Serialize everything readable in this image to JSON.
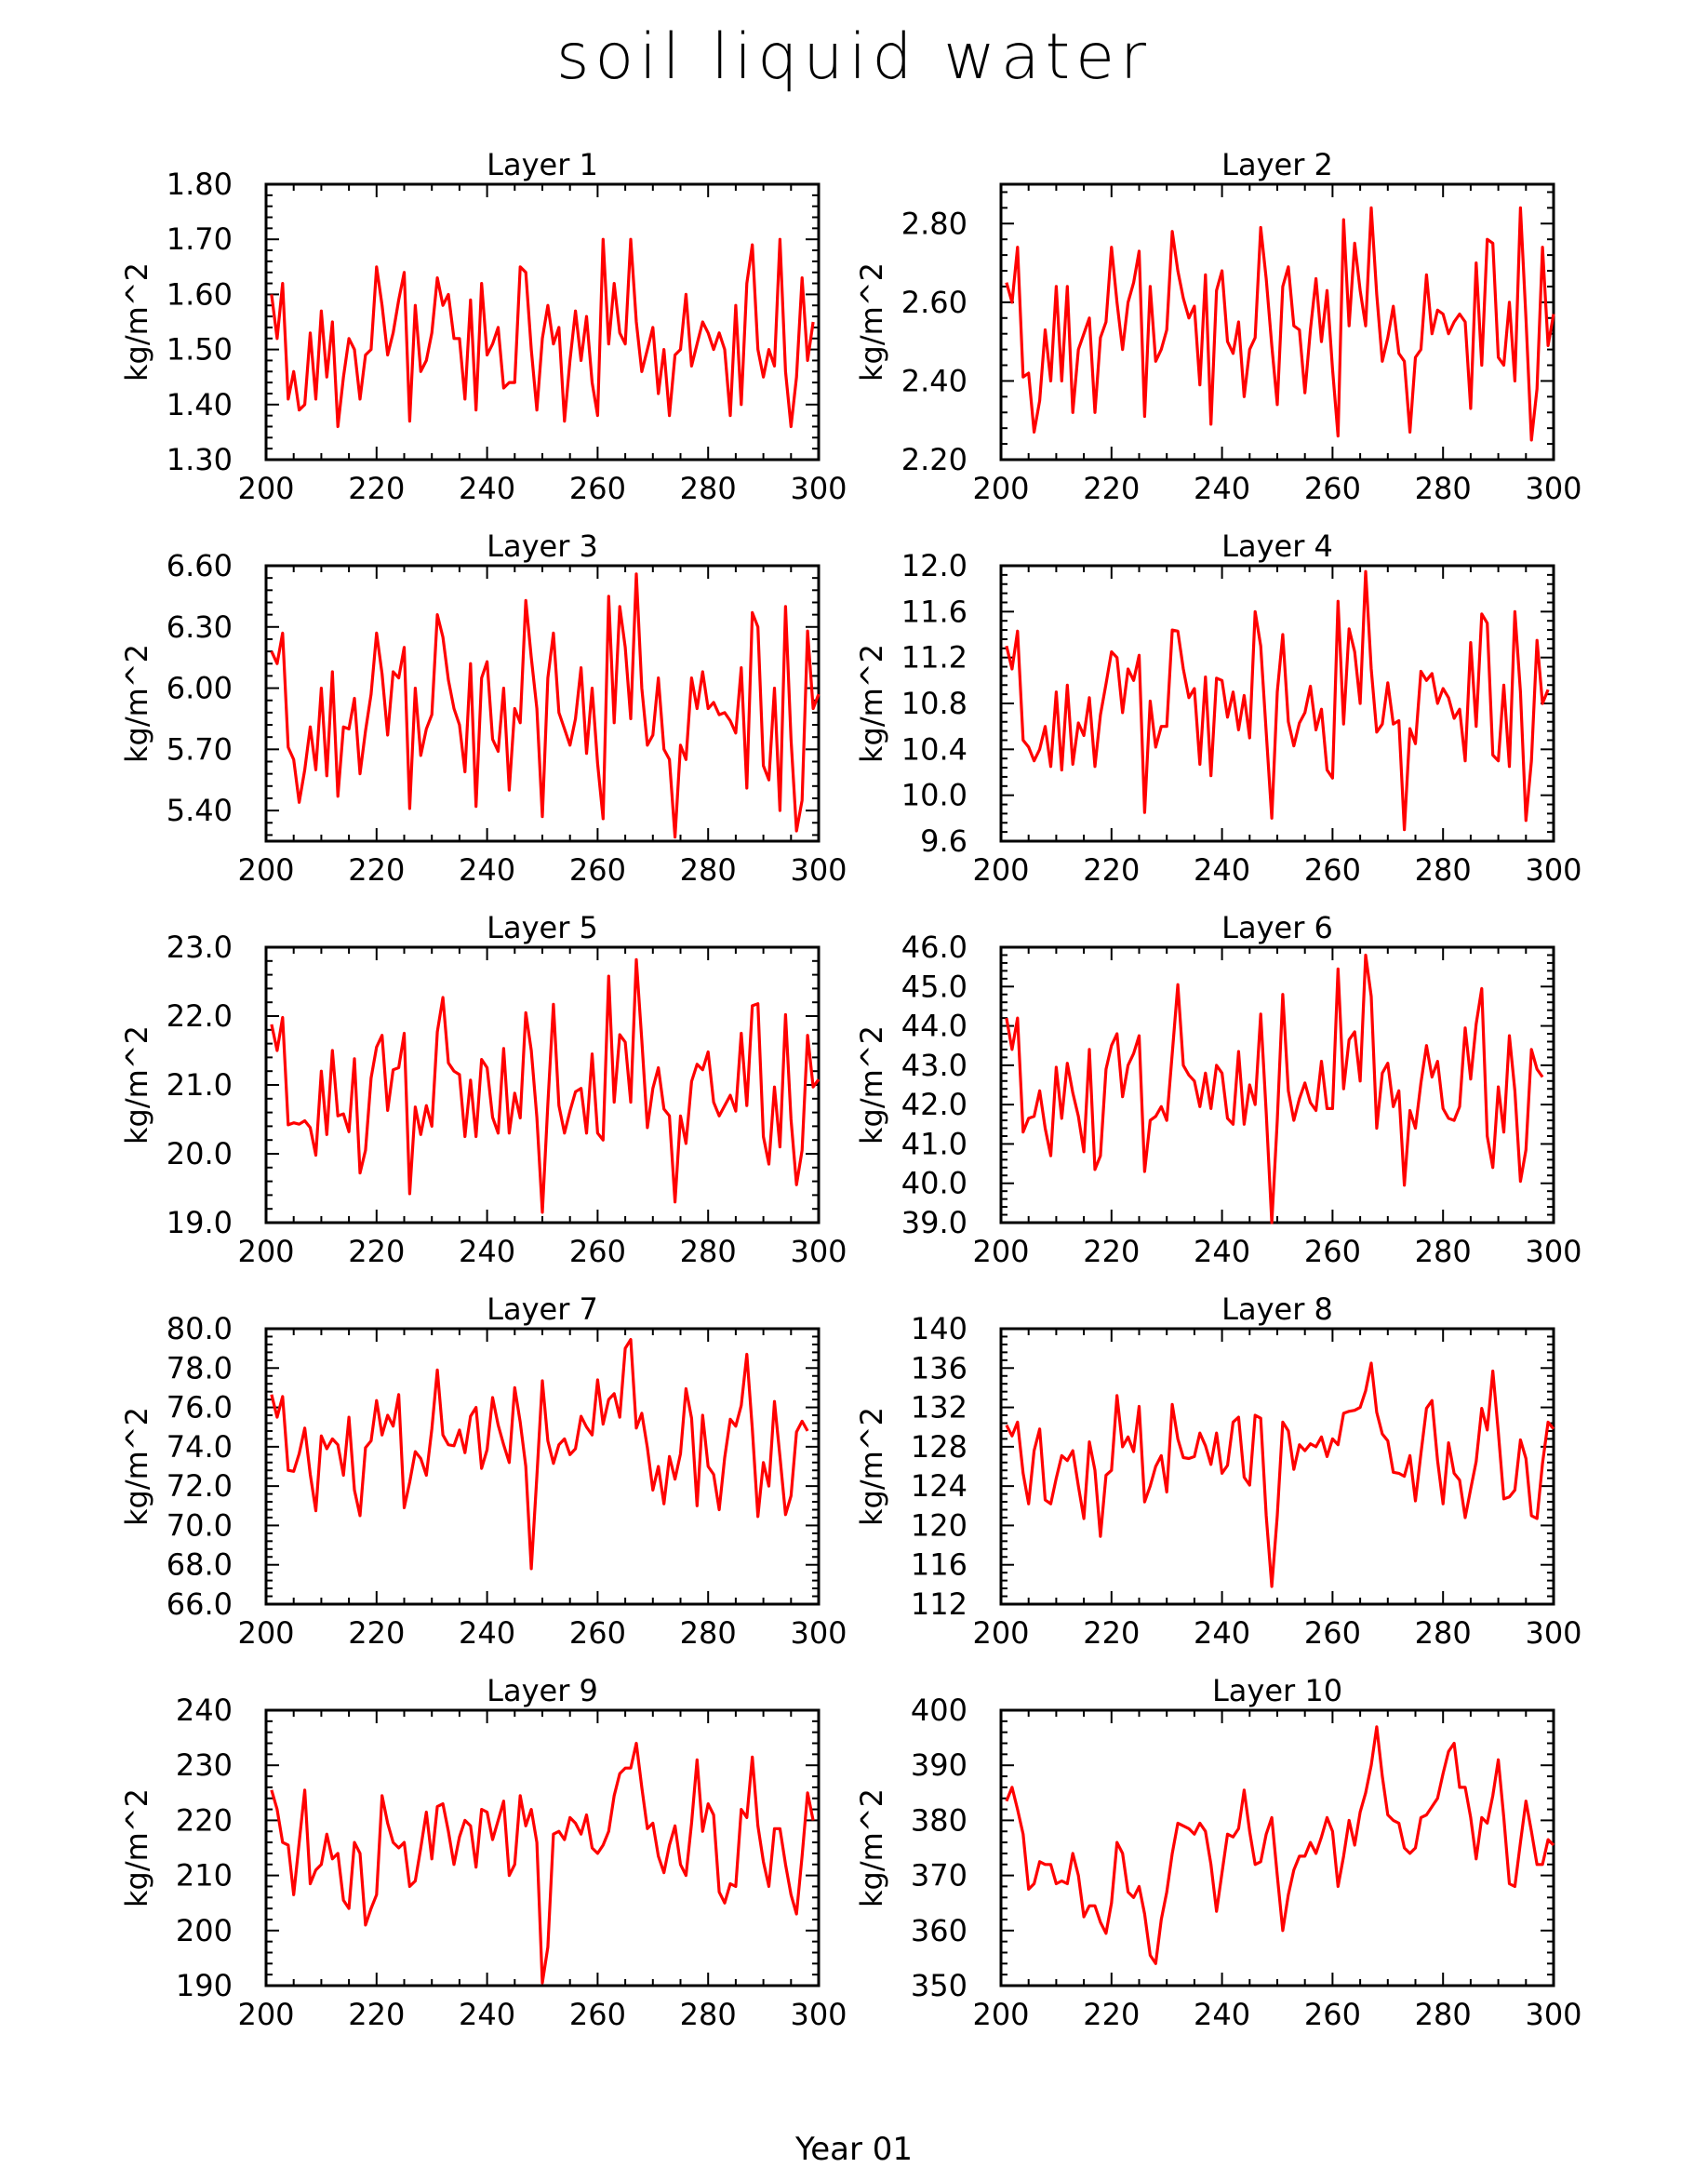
{
  "title": "soil liquid water",
  "footer": "Year 01",
  "line_color": "#ff0000",
  "chart_data": [
    {
      "type": "line",
      "title": "Layer 1",
      "xlabel": "",
      "ylabel": "kg/m^2",
      "xlim": [
        200,
        300
      ],
      "xticks": [
        200,
        220,
        240,
        260,
        280,
        300
      ],
      "ylim": [
        1.3,
        1.8
      ],
      "yticks": [
        "1.30",
        "1.40",
        "1.50",
        "1.60",
        "1.70",
        "1.80"
      ],
      "x_start": 201,
      "x_step": 1,
      "values": [
        1.6,
        1.52,
        1.62,
        1.41,
        1.46,
        1.39,
        1.4,
        1.53,
        1.41,
        1.57,
        1.45,
        1.55,
        1.36,
        1.45,
        1.52,
        1.5,
        1.41,
        1.49,
        1.5,
        1.65,
        1.58,
        1.49,
        1.53,
        1.59,
        1.64,
        1.37,
        1.58,
        1.46,
        1.48,
        1.53,
        1.63,
        1.58,
        1.6,
        1.52,
        1.52,
        1.41,
        1.59,
        1.39,
        1.62,
        1.49,
        1.51,
        1.54,
        1.43,
        1.44,
        1.44,
        1.65,
        1.64,
        1.5,
        1.39,
        1.52,
        1.58,
        1.51,
        1.54,
        1.37,
        1.48,
        1.57,
        1.48,
        1.56,
        1.44,
        1.38,
        1.7,
        1.51,
        1.62,
        1.53,
        1.51,
        1.7,
        1.55,
        1.46,
        1.5,
        1.54,
        1.42,
        1.5,
        1.38,
        1.49,
        1.5,
        1.6,
        1.47,
        1.51,
        1.55,
        1.53,
        1.5,
        1.53,
        1.5,
        1.38,
        1.58,
        1.4,
        1.62,
        1.69,
        1.5,
        1.45,
        1.5,
        1.47,
        1.7,
        1.46,
        1.36,
        1.45,
        1.63,
        1.48,
        1.55
      ]
    },
    {
      "type": "line",
      "title": "Layer 2",
      "xlabel": "",
      "ylabel": "kg/m^2",
      "xlim": [
        200,
        300
      ],
      "xticks": [
        200,
        220,
        240,
        260,
        280,
        300
      ],
      "ylim": [
        2.2,
        2.9
      ],
      "yticks": [
        "2.20",
        "2.40",
        "2.60",
        "2.80"
      ],
      "x_start": 201,
      "x_step": 1,
      "values": [
        2.65,
        2.6,
        2.74,
        2.41,
        2.42,
        2.27,
        2.35,
        2.53,
        2.4,
        2.64,
        2.4,
        2.64,
        2.32,
        2.48,
        2.52,
        2.56,
        2.32,
        2.51,
        2.55,
        2.74,
        2.6,
        2.48,
        2.6,
        2.65,
        2.73,
        2.31,
        2.64,
        2.45,
        2.48,
        2.53,
        2.78,
        2.68,
        2.61,
        2.56,
        2.59,
        2.39,
        2.67,
        2.29,
        2.63,
        2.68,
        2.5,
        2.47,
        2.55,
        2.36,
        2.48,
        2.51,
        2.79,
        2.66,
        2.49,
        2.34,
        2.64,
        2.69,
        2.54,
        2.53,
        2.37,
        2.53,
        2.66,
        2.5,
        2.63,
        2.43,
        2.26,
        2.81,
        2.54,
        2.75,
        2.63,
        2.54,
        2.84,
        2.62,
        2.45,
        2.51,
        2.59,
        2.47,
        2.45,
        2.27,
        2.46,
        2.48,
        2.67,
        2.52,
        2.58,
        2.57,
        2.52,
        2.55,
        2.57,
        2.55,
        2.33,
        2.7,
        2.44,
        2.76,
        2.75,
        2.46,
        2.44,
        2.6,
        2.4,
        2.84,
        2.56,
        2.25,
        2.38,
        2.74,
        2.49,
        2.57
      ]
    },
    {
      "type": "line",
      "title": "Layer 3",
      "xlabel": "",
      "ylabel": "kg/m^2",
      "xlim": [
        200,
        300
      ],
      "xticks": [
        200,
        220,
        240,
        260,
        280,
        300
      ],
      "ylim": [
        5.25,
        6.6
      ],
      "yticks": [
        "5.40",
        "5.70",
        "6.00",
        "6.30",
        "6.60"
      ],
      "x_start": 201,
      "x_step": 1,
      "values": [
        6.18,
        6.12,
        6.27,
        5.71,
        5.65,
        5.44,
        5.6,
        5.81,
        5.6,
        6.0,
        5.57,
        6.08,
        5.47,
        5.81,
        5.8,
        5.95,
        5.58,
        5.79,
        5.97,
        6.27,
        6.07,
        5.77,
        6.08,
        6.05,
        6.2,
        5.41,
        6.0,
        5.67,
        5.8,
        5.87,
        6.36,
        6.25,
        6.04,
        5.9,
        5.82,
        5.59,
        6.12,
        5.42,
        6.05,
        6.13,
        5.75,
        5.69,
        6.0,
        5.5,
        5.9,
        5.83,
        6.43,
        6.15,
        5.9,
        5.37,
        6.05,
        6.27,
        5.88,
        5.8,
        5.72,
        5.85,
        6.1,
        5.68,
        6.0,
        5.63,
        5.36,
        6.45,
        5.83,
        6.4,
        6.2,
        5.85,
        6.56,
        6.0,
        5.72,
        5.77,
        6.05,
        5.7,
        5.65,
        5.27,
        5.72,
        5.65,
        6.05,
        5.9,
        6.08,
        5.9,
        5.93,
        5.87,
        5.88,
        5.84,
        5.78,
        6.1,
        5.51,
        6.37,
        6.3,
        5.62,
        5.55,
        6.0,
        5.4,
        6.4,
        5.75,
        5.3,
        5.45,
        6.28,
        5.9,
        5.97
      ]
    },
    {
      "type": "line",
      "title": "Layer 4",
      "xlabel": "",
      "ylabel": "kg/m^2",
      "xlim": [
        200,
        300
      ],
      "xticks": [
        200,
        220,
        240,
        260,
        280,
        300
      ],
      "ylim": [
        9.6,
        12.0
      ],
      "yticks": [
        "9.6",
        "10.0",
        "10.4",
        "10.8",
        "11.2",
        "11.6",
        "12.0"
      ],
      "x_start": 201,
      "x_step": 1,
      "values": [
        11.3,
        11.1,
        11.43,
        10.48,
        10.42,
        10.3,
        10.4,
        10.6,
        10.25,
        10.9,
        10.22,
        10.96,
        10.27,
        10.63,
        10.52,
        10.85,
        10.25,
        10.7,
        10.97,
        11.25,
        11.2,
        10.72,
        11.1,
        11.0,
        11.22,
        9.85,
        10.82,
        10.42,
        10.6,
        10.6,
        11.44,
        11.43,
        11.1,
        10.85,
        10.93,
        10.27,
        11.03,
        10.17,
        11.02,
        11.0,
        10.68,
        10.9,
        10.57,
        10.87,
        10.5,
        11.6,
        11.3,
        10.55,
        9.8,
        10.9,
        11.4,
        10.64,
        10.43,
        10.63,
        10.72,
        10.95,
        10.57,
        10.75,
        10.22,
        10.15,
        11.69,
        10.62,
        11.45,
        11.25,
        10.8,
        11.95,
        11.1,
        10.55,
        10.62,
        10.98,
        10.62,
        10.65,
        9.7,
        10.58,
        10.45,
        11.08,
        11.0,
        11.06,
        10.8,
        10.93,
        10.85,
        10.67,
        10.75,
        10.3,
        11.33,
        10.6,
        11.58,
        11.5,
        10.35,
        10.3,
        10.96,
        10.25,
        11.6,
        10.9,
        9.78,
        10.3,
        11.35,
        10.8,
        10.92
      ]
    },
    {
      "type": "line",
      "title": "Layer 5",
      "xlabel": "",
      "ylabel": "kg/m^2",
      "xlim": [
        200,
        300
      ],
      "xticks": [
        200,
        220,
        240,
        260,
        280,
        300
      ],
      "ylim": [
        19.0,
        23.0
      ],
      "yticks": [
        "19.0",
        "20.0",
        "21.0",
        "22.0",
        "23.0"
      ],
      "x_start": 201,
      "x_step": 1,
      "values": [
        21.88,
        21.5,
        21.98,
        20.42,
        20.45,
        20.43,
        20.48,
        20.38,
        19.98,
        21.2,
        20.28,
        21.5,
        20.55,
        20.58,
        20.32,
        21.38,
        19.72,
        20.05,
        21.1,
        21.55,
        21.72,
        20.63,
        21.22,
        21.25,
        21.75,
        19.42,
        20.68,
        20.28,
        20.7,
        20.4,
        21.77,
        22.27,
        21.32,
        21.2,
        21.15,
        20.25,
        21.07,
        20.25,
        21.37,
        21.25,
        20.53,
        20.3,
        21.53,
        20.3,
        20.88,
        20.52,
        22.05,
        21.5,
        20.53,
        19.15,
        20.72,
        22.17,
        20.7,
        20.3,
        20.62,
        20.9,
        20.95,
        20.3,
        21.45,
        20.3,
        20.2,
        22.58,
        20.75,
        21.73,
        21.62,
        20.75,
        22.82,
        21.65,
        20.38,
        20.95,
        21.25,
        20.65,
        20.55,
        19.3,
        20.55,
        20.15,
        21.05,
        21.3,
        21.22,
        21.48,
        20.75,
        20.55,
        20.7,
        20.85,
        20.62,
        21.75,
        20.7,
        22.15,
        22.18,
        20.25,
        19.85,
        20.97,
        20.1,
        22.02,
        20.5,
        19.55,
        20.05,
        21.72,
        20.97,
        21.08
      ]
    },
    {
      "type": "line",
      "title": "Layer 6",
      "xlabel": "",
      "ylabel": "kg/m^2",
      "xlim": [
        200,
        300
      ],
      "xticks": [
        200,
        220,
        240,
        260,
        280,
        300
      ],
      "ylim": [
        39.0,
        46.0
      ],
      "yticks": [
        "39.0",
        "40.0",
        "41.0",
        "42.0",
        "43.0",
        "44.0",
        "45.0",
        "46.0"
      ],
      "x_start": 201,
      "x_step": 1,
      "values": [
        44.2,
        43.4,
        44.2,
        41.3,
        41.65,
        41.7,
        42.35,
        41.4,
        40.7,
        42.95,
        41.65,
        43.05,
        42.3,
        41.7,
        40.8,
        43.4,
        40.35,
        40.7,
        42.9,
        43.5,
        43.8,
        42.2,
        43.0,
        43.3,
        43.75,
        40.3,
        41.6,
        41.7,
        41.95,
        41.6,
        43.3,
        45.05,
        43.0,
        42.75,
        42.6,
        41.95,
        42.8,
        41.9,
        43.0,
        42.8,
        41.65,
        41.5,
        43.35,
        41.5,
        42.5,
        42.0,
        44.3,
        41.8,
        39.0,
        41.6,
        44.8,
        42.35,
        41.6,
        42.15,
        42.55,
        42.05,
        41.85,
        43.1,
        41.9,
        41.9,
        45.45,
        42.4,
        43.65,
        43.85,
        42.6,
        45.8,
        44.75,
        41.4,
        42.8,
        43.05,
        41.95,
        42.35,
        39.95,
        41.85,
        41.4,
        42.55,
        43.5,
        42.7,
        43.1,
        41.9,
        41.65,
        41.6,
        41.95,
        43.95,
        42.65,
        44.05,
        44.95,
        41.2,
        40.4,
        42.45,
        41.3,
        43.75,
        42.35,
        40.05,
        40.85,
        43.4,
        42.9,
        42.7
      ]
    },
    {
      "type": "line",
      "title": "Layer 7",
      "xlabel": "",
      "ylabel": "kg/m^2",
      "xlim": [
        200,
        300
      ],
      "xticks": [
        200,
        220,
        240,
        260,
        280,
        300
      ],
      "ylim": [
        66.0,
        80.0
      ],
      "yticks": [
        "66.0",
        "68.0",
        "70.0",
        "72.0",
        "74.0",
        "76.0",
        "78.0",
        "80.0"
      ],
      "x_start": 201,
      "x_step": 1,
      "values": [
        76.65,
        75.5,
        76.55,
        72.8,
        72.75,
        73.65,
        74.95,
        72.6,
        70.75,
        74.55,
        73.9,
        74.4,
        74.1,
        72.55,
        75.5,
        71.8,
        70.5,
        73.95,
        74.3,
        76.35,
        74.6,
        75.6,
        75.05,
        76.65,
        70.9,
        72.2,
        73.75,
        73.4,
        72.55,
        74.9,
        77.9,
        74.6,
        74.1,
        74.05,
        74.85,
        73.7,
        75.55,
        76.0,
        72.9,
        73.85,
        76.5,
        75.1,
        74.1,
        73.2,
        77.0,
        75.25,
        73.0,
        67.8,
        72.5,
        77.35,
        74.3,
        73.15,
        74.1,
        74.4,
        73.6,
        73.9,
        75.55,
        75.0,
        74.6,
        77.4,
        75.15,
        76.4,
        76.7,
        75.5,
        79.0,
        79.45,
        74.95,
        75.7,
        73.95,
        71.8,
        73.0,
        71.1,
        73.5,
        72.35,
        73.65,
        76.95,
        75.45,
        71.0,
        75.6,
        73.0,
        72.6,
        70.8,
        73.45,
        75.4,
        75.05,
        76.1,
        78.7,
        74.9,
        70.45,
        73.2,
        72.0,
        76.3,
        73.5,
        70.55,
        71.5,
        74.75,
        75.3,
        74.8
      ]
    },
    {
      "type": "line",
      "title": "Layer 8",
      "xlabel": "",
      "ylabel": "kg/m^2",
      "xlim": [
        200,
        300
      ],
      "xticks": [
        200,
        220,
        240,
        260,
        280,
        300
      ],
      "ylim": [
        112,
        140
      ],
      "yticks": [
        "112",
        "116",
        "120",
        "124",
        "128",
        "132",
        "136",
        "140"
      ],
      "x_start": 201,
      "x_step": 1,
      "values": [
        130.2,
        129.1,
        130.5,
        125.3,
        122.2,
        127.6,
        129.8,
        122.6,
        122.2,
        124.8,
        127.1,
        126.6,
        127.6,
        124.0,
        120.7,
        128.5,
        125.6,
        118.9,
        125.1,
        125.6,
        133.2,
        128.0,
        129.0,
        127.5,
        132.1,
        122.4,
        124.0,
        126.0,
        127.1,
        123.4,
        132.3,
        128.8,
        126.9,
        126.8,
        127.0,
        129.4,
        128.1,
        126.2,
        129.4,
        125.3,
        126.1,
        130.5,
        131.0,
        124.9,
        124.1,
        131.2,
        130.9,
        121.0,
        113.8,
        121.0,
        130.5,
        129.6,
        125.7,
        128.2,
        127.6,
        128.3,
        128.0,
        129.0,
        127.0,
        128.8,
        128.2,
        131.4,
        131.6,
        131.7,
        132.0,
        133.7,
        136.5,
        131.5,
        129.3,
        128.6,
        125.4,
        125.3,
        125.0,
        127.1,
        122.5,
        127.3,
        131.9,
        132.7,
        126.6,
        122.2,
        128.4,
        125.3,
        124.6,
        120.8,
        123.7,
        126.5,
        131.9,
        129.7,
        135.7,
        129.5,
        122.7,
        122.9,
        123.6,
        128.7,
        126.8,
        121.0,
        120.7,
        126.3,
        130.5,
        129.8
      ]
    },
    {
      "type": "line",
      "title": "Layer 9",
      "xlabel": "",
      "ylabel": "kg/m^2",
      "xlim": [
        200,
        300
      ],
      "xticks": [
        200,
        220,
        240,
        260,
        280,
        300
      ],
      "ylim": [
        190,
        240
      ],
      "yticks": [
        "190",
        "200",
        "210",
        "220",
        "230",
        "240"
      ],
      "x_start": 201,
      "x_step": 1,
      "values": [
        225.5,
        222.0,
        216.0,
        215.5,
        206.5,
        216.0,
        225.5,
        208.5,
        211.0,
        212.0,
        217.5,
        213.0,
        214.0,
        205.5,
        204.0,
        216.0,
        214.0,
        201.0,
        204.0,
        206.5,
        224.5,
        219.5,
        216.0,
        215.0,
        216.0,
        208.0,
        209.0,
        215.0,
        221.5,
        213.0,
        222.5,
        223.0,
        218.0,
        212.0,
        217.0,
        220.0,
        219.0,
        211.5,
        222.0,
        221.5,
        216.5,
        220.0,
        223.5,
        210.0,
        212.0,
        224.5,
        219.0,
        222.0,
        216.0,
        190.5,
        197.0,
        217.5,
        218.0,
        216.5,
        220.5,
        219.5,
        217.5,
        221.0,
        215.0,
        214.0,
        215.5,
        218.0,
        224.5,
        228.5,
        229.5,
        229.5,
        234.0,
        226.0,
        218.5,
        219.5,
        213.5,
        210.5,
        215.5,
        219.0,
        212.0,
        210.0,
        219.5,
        231.0,
        218.0,
        223.0,
        221.0,
        207.0,
        205.0,
        208.5,
        208.0,
        222.0,
        220.5,
        231.5,
        219.0,
        212.5,
        208.0,
        218.5,
        218.5,
        212.0,
        206.5,
        203.0,
        213.5,
        225.0,
        220.0
      ]
    },
    {
      "type": "line",
      "title": "Layer 10",
      "xlabel": "",
      "ylabel": "kg/m^2",
      "xlim": [
        200,
        300
      ],
      "xticks": [
        200,
        220,
        240,
        260,
        280,
        300
      ],
      "ylim": [
        350,
        400
      ],
      "yticks": [
        "350",
        "360",
        "370",
        "380",
        "390",
        "400"
      ],
      "x_start": 201,
      "x_step": 1,
      "values": [
        383.5,
        386.0,
        382.0,
        377.5,
        367.5,
        368.5,
        372.5,
        372.0,
        372.0,
        368.5,
        369.0,
        368.5,
        374.0,
        370.0,
        362.5,
        364.5,
        364.5,
        361.5,
        359.5,
        365.0,
        376.0,
        374.0,
        367.0,
        366.0,
        368.0,
        363.0,
        355.5,
        354.0,
        362.0,
        367.0,
        374.0,
        379.5,
        379.0,
        378.5,
        377.5,
        379.5,
        378.0,
        372.0,
        363.5,
        370.5,
        377.5,
        377.0,
        378.5,
        385.5,
        378.0,
        372.0,
        372.5,
        377.5,
        380.5,
        370.0,
        360.0,
        366.5,
        371.0,
        373.5,
        373.5,
        376.0,
        374.0,
        377.0,
        380.5,
        378.0,
        368.0,
        373.5,
        380.0,
        375.5,
        381.5,
        385.0,
        390.0,
        397.0,
        388.0,
        381.0,
        380.0,
        379.5,
        375.0,
        374.0,
        375.0,
        380.5,
        381.0,
        382.5,
        384.0,
        388.5,
        392.5,
        394.0,
        386.0,
        386.0,
        380.5,
        373.0,
        380.5,
        379.5,
        384.5,
        391.0,
        380.5,
        368.5,
        368.0,
        376.0,
        383.5,
        378.0,
        372.0,
        372.0,
        376.5,
        375.5
      ]
    }
  ]
}
